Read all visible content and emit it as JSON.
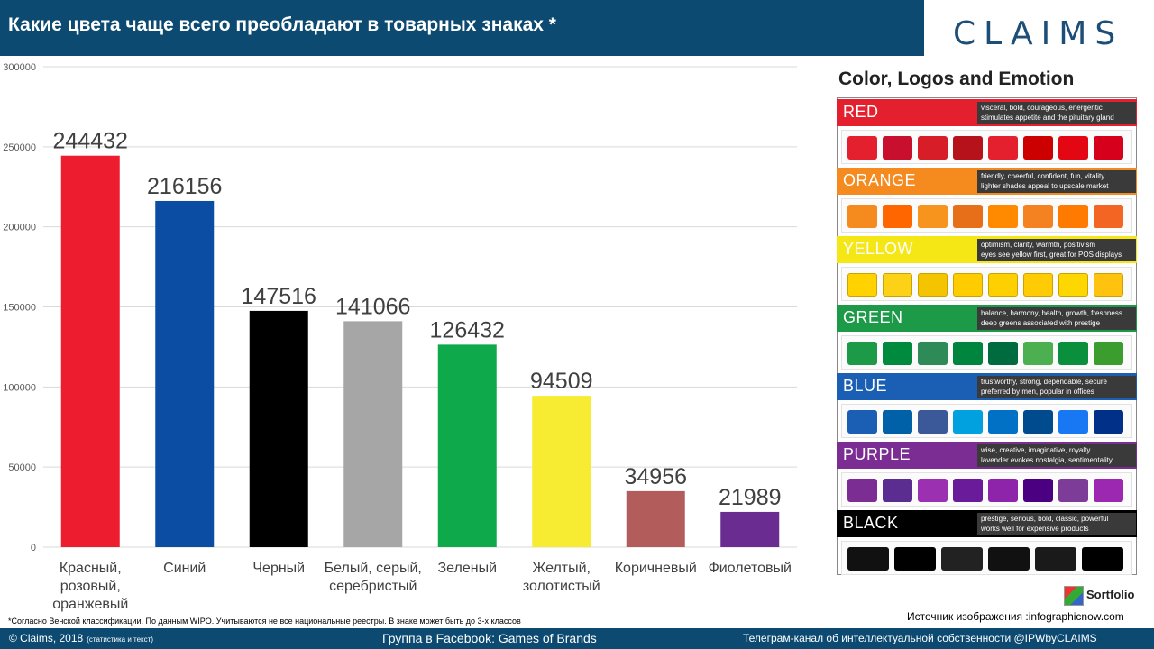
{
  "header": {
    "title": "Какие цвета чаще всего преобладают в товарных знаках *"
  },
  "logo": {
    "text": "CLAIMS"
  },
  "chart_data": {
    "type": "bar",
    "categories": [
      [
        "Красный,",
        "розовый,",
        "оранжевый"
      ],
      [
        "Синий"
      ],
      [
        "Черный"
      ],
      [
        "Белый, серый,",
        "серебристый"
      ],
      [
        "Зеленый"
      ],
      [
        "Желтый,",
        "золотистый"
      ],
      [
        "Коричневый"
      ],
      [
        "Фиолетовый"
      ]
    ],
    "values": [
      244432,
      216156,
      147516,
      141066,
      126432,
      94509,
      34956,
      21989
    ],
    "colors": [
      "#ed1c2e",
      "#0a4da2",
      "#000000",
      "#a6a6a6",
      "#0ea94a",
      "#f8ec32",
      "#b35c5c",
      "#6a2c91"
    ],
    "ylim": [
      0,
      300000
    ],
    "yticks": [
      0,
      50000,
      100000,
      150000,
      200000,
      250000,
      300000
    ],
    "grid": true,
    "legend": "none"
  },
  "footnote": "*Согласно Венской классификации. По данным WIPO. Учитываются не все национальные реестры. В знаке может быть до 3-х классов",
  "infographic": {
    "title": "Color, Logos and Emotion",
    "rows": [
      {
        "name": "RED",
        "color": "#e5202e",
        "desc1": "visceral, bold, courageous, energentic",
        "desc2": "stimulates appetite and the pituitary gland"
      },
      {
        "name": "ORANGE",
        "color": "#f58a1f",
        "desc1": "friendly, cheerful, confident, fun, vitality",
        "desc2": "lighter shades appeal to upscale market"
      },
      {
        "name": "YELLOW",
        "color": "#f5e616",
        "desc1": "optimism, clarity, warmth, positivism",
        "desc2": "eyes see yellow first, great for POS displays"
      },
      {
        "name": "GREEN",
        "color": "#1d9a48",
        "desc1": "balance, harmony, health, growth, freshness",
        "desc2": "deep greens associated with prestige"
      },
      {
        "name": "BLUE",
        "color": "#1a5fb4",
        "desc1": "trustworthy, strong, dependable, secure",
        "desc2": "preferred by men, popular in offices"
      },
      {
        "name": "PURPLE",
        "color": "#7b2d93",
        "desc1": "wise, creative, imaginative, royalty",
        "desc2": "lavender evokes nostalgia, sentimentality"
      },
      {
        "name": "BLACK",
        "color": "#000000",
        "desc1": "prestige, serious, bold, classic, powerful",
        "desc2": "works well for expensive products"
      }
    ]
  },
  "source": "Источник изображения :infographicnow.com",
  "sortfolio": "Sortfolio",
  "footer": {
    "left": "© Claims, 2018",
    "left_small": "(статистика и текст)",
    "center": "Группа в Facebook: Games of Brands",
    "right": "Телеграм-канал  об интеллектуальной  собственности  @IPWbyCLAIMS"
  }
}
